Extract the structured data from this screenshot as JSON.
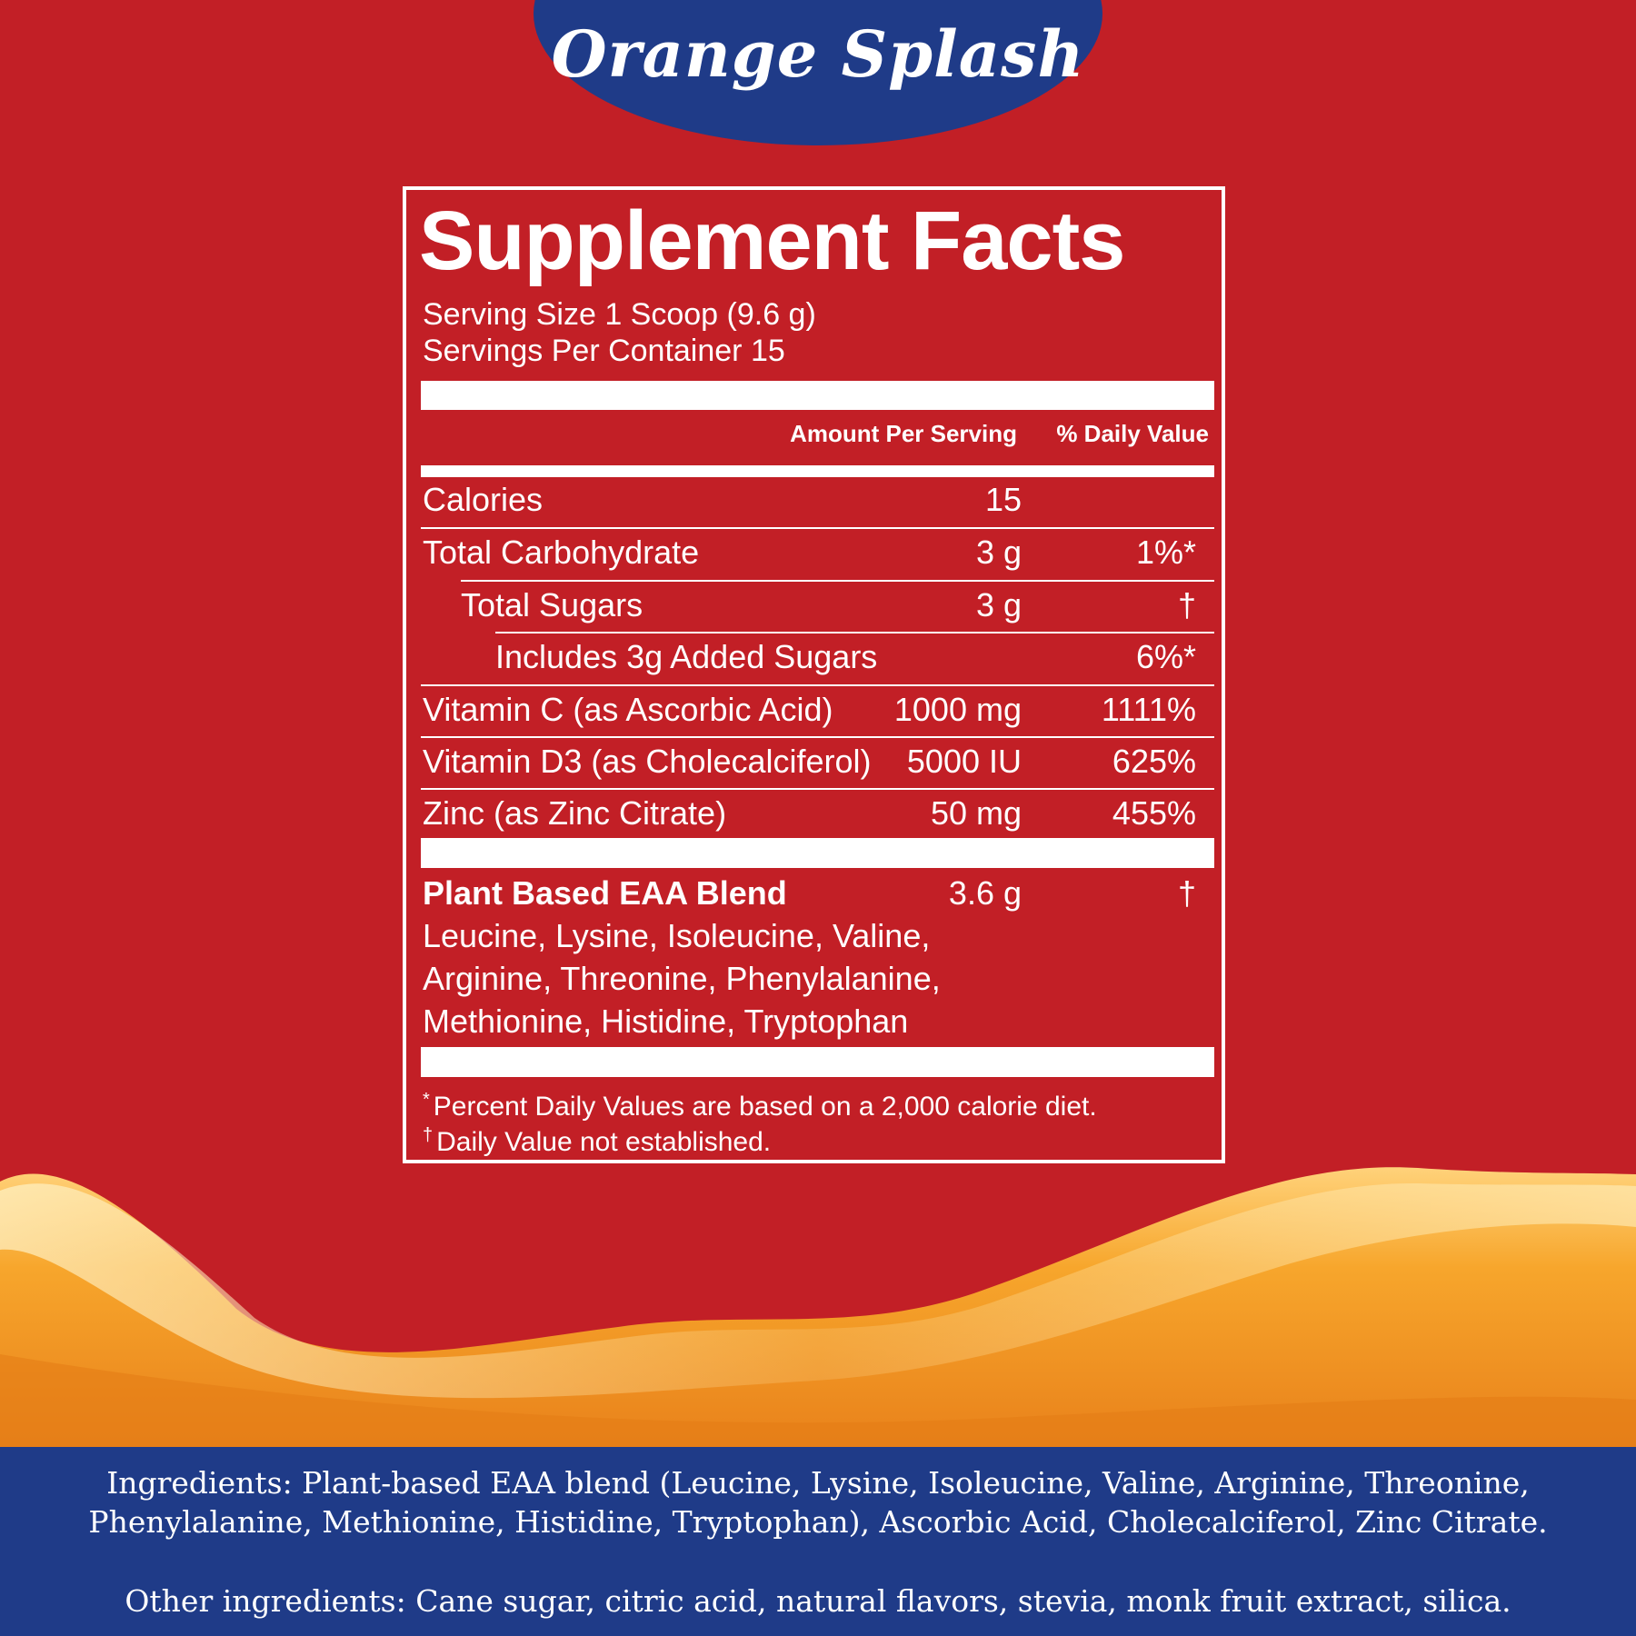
{
  "flavor": "Orange Splash",
  "facts": {
    "title": "Supplement Facts",
    "serving_size": "Serving Size 1 Scoop (9.6 g)",
    "servings_per_container": "Servings Per Container 15",
    "header_amount": "Amount Per Serving",
    "header_dv": "% Daily Value",
    "rows": [
      {
        "name": "Calories",
        "amount": "15",
        "dv": ""
      },
      {
        "name": "Total Carbohydrate",
        "amount": "3 g",
        "dv": "1%*"
      },
      {
        "name": "Total Sugars",
        "amount": "3 g",
        "dv": "†"
      },
      {
        "name": "Includes 3g Added Sugars",
        "amount": "",
        "dv": "6%*"
      },
      {
        "name": "Vitamin C (as Ascorbic Acid)",
        "amount": "1000 mg",
        "dv": "1111%"
      },
      {
        "name": "Vitamin D3 (as Cholecalciferol)",
        "amount": "5000 IU",
        "dv": "625%"
      },
      {
        "name": "Zinc (as Zinc Citrate)",
        "amount": "50 mg",
        "dv": "455%"
      }
    ],
    "blend": {
      "name": "Plant Based EAA Blend",
      "amount": "3.6 g",
      "dv": "†",
      "lines": [
        "Leucine, Lysine, Isoleucine, Valine,",
        "Arginine, Threonine, Phenylalanine,",
        "Methionine, Histidine, Tryptophan"
      ]
    },
    "footnotes": [
      {
        "symbol": "*",
        "text": "Percent Daily Values are based on a 2,000 calorie diet."
      },
      {
        "symbol": "†",
        "text": "Daily Value not established."
      }
    ]
  },
  "ingredients": {
    "line1": "Ingredients: Plant-based EAA blend (Leucine, Lysine, Isoleucine, Valine, Arginine, Threonine,",
    "line2": "Phenylalanine, Methionine, Histidine, Tryptophan), Ascorbic Acid, Cholecalciferol, Zinc Citrate.",
    "other": "Other ingredients: Cane sugar, citric acid, natural flavors, stevia, monk fruit extract, silica."
  },
  "colors": {
    "background": "#c21f26",
    "accent_blue": "#1f3b88",
    "orange": "#f0a030",
    "text": "#ffffff"
  }
}
